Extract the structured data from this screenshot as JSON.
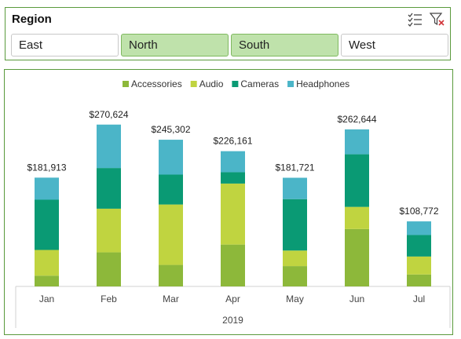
{
  "slicer": {
    "title": "Region",
    "items": [
      {
        "label": "East",
        "selected": false
      },
      {
        "label": "North",
        "selected": true
      },
      {
        "label": "South",
        "selected": true
      },
      {
        "label": "West",
        "selected": false
      }
    ],
    "multiselect_icon": "multi-select-icon",
    "clear_filter_icon": "clear-filter-icon"
  },
  "chart_data": {
    "type": "bar",
    "stacked": true,
    "title": "",
    "xlabel": "2019",
    "ylabel": "",
    "categories": [
      "Jan",
      "Feb",
      "Mar",
      "Apr",
      "May",
      "Jun",
      "Jul"
    ],
    "totals": [
      181913,
      270624,
      245302,
      226161,
      181721,
      262644,
      108772
    ],
    "total_labels": [
      "$181,913",
      "$270,624",
      "$245,302",
      "$226,161",
      "$181,721",
      "$262,644",
      "$108,772"
    ],
    "series": [
      {
        "name": "Accessories",
        "color": "#8db83a",
        "values": [
          18000,
          57000,
          36000,
          70000,
          34000,
          96000,
          20000
        ]
      },
      {
        "name": "Audio",
        "color": "#c0d440",
        "values": [
          43000,
          73000,
          101000,
          102000,
          26000,
          37000,
          30000
        ]
      },
      {
        "name": "Cameras",
        "color": "#0a9a74",
        "values": [
          84000,
          68000,
          50000,
          19000,
          86000,
          88000,
          36000
        ]
      },
      {
        "name": "Headphones",
        "color": "#4bb5c8",
        "values": [
          36913,
          72624,
          58302,
          35161,
          35721,
          41644,
          22772
        ]
      }
    ],
    "ylim": [
      0,
      290000
    ],
    "legend_position": "top",
    "grid": false
  }
}
